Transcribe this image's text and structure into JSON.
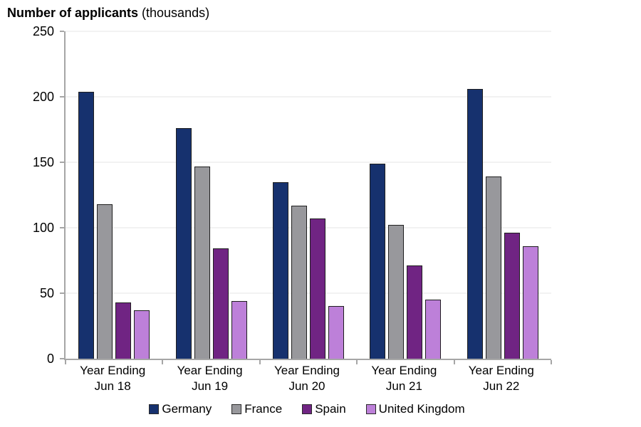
{
  "title": {
    "bold": "Number of applicants",
    "normal": " (thousands)"
  },
  "chart_data": {
    "type": "bar",
    "title": "Number of applicants (thousands)",
    "xlabel": "",
    "ylabel": "Number of applicants (thousands)",
    "ylim": [
      0,
      250
    ],
    "yticks": [
      0,
      50,
      100,
      150,
      200,
      250
    ],
    "grid": true,
    "legend_position": "bottom",
    "categories": [
      {
        "line1": "Year Ending",
        "line2": "Jun 18"
      },
      {
        "line1": "Year Ending",
        "line2": "Jun 19"
      },
      {
        "line1": "Year Ending",
        "line2": "Jun 20"
      },
      {
        "line1": "Year Ending",
        "line2": "Jun 21"
      },
      {
        "line1": "Year Ending",
        "line2": "Jun 22"
      }
    ],
    "series": [
      {
        "name": "Germany",
        "color": "#16316e",
        "values": [
          204,
          176,
          135,
          149,
          206
        ]
      },
      {
        "name": "France",
        "color": "#98989c",
        "values": [
          118,
          147,
          117,
          102,
          139
        ]
      },
      {
        "name": "Spain",
        "color": "#702483",
        "values": [
          43,
          84,
          107,
          71,
          96
        ]
      },
      {
        "name": "United Kingdom",
        "color": "#bd80d9",
        "values": [
          37,
          44,
          40,
          45,
          86
        ]
      }
    ]
  },
  "colors": {
    "axis": "#a6a6a6",
    "gridline": "#f2f2f2",
    "bar_outline": "#1f1f1f",
    "text": "#000000"
  }
}
